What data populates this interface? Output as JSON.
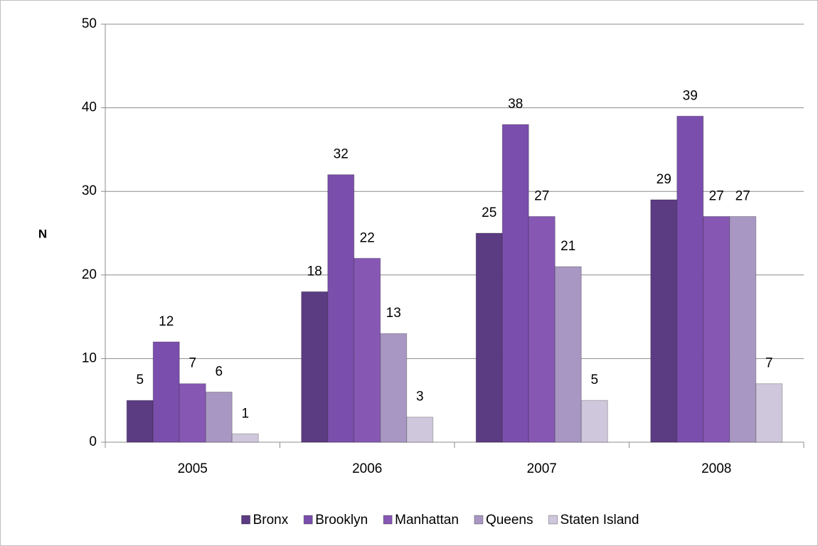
{
  "chart_data": {
    "type": "bar",
    "y_label": "N",
    "categories": [
      "2005",
      "2006",
      "2007",
      "2008"
    ],
    "series": [
      {
        "name": "Bronx",
        "color": "#5b3b82",
        "values": [
          5,
          18,
          25,
          29
        ]
      },
      {
        "name": "Brooklyn",
        "color": "#7a4eac",
        "values": [
          12,
          32,
          38,
          39
        ]
      },
      {
        "name": "Manhattan",
        "color": "#8658b4",
        "values": [
          7,
          22,
          27,
          27
        ]
      },
      {
        "name": "Queens",
        "color": "#a897c2",
        "values": [
          6,
          13,
          21,
          27
        ]
      },
      {
        "name": "Staten Island",
        "color": "#cfc7dc",
        "values": [
          1,
          3,
          5,
          7
        ]
      }
    ],
    "ylim": [
      0,
      50
    ],
    "yticks": [
      0,
      10,
      20,
      30,
      40,
      50
    ],
    "grid": true,
    "legend": "bottom"
  }
}
